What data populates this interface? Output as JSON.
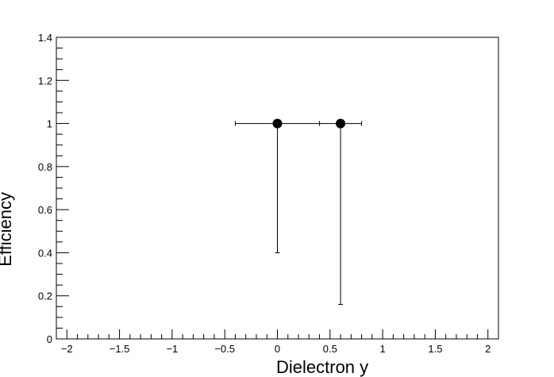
{
  "chart_data": {
    "type": "scatter",
    "xlabel": "Dielectron y",
    "ylabel": "Efficiency",
    "xlim": [
      -2.1,
      2.1
    ],
    "ylim": [
      0,
      1.4
    ],
    "x_ticks": [
      -2,
      -1.5,
      -1,
      -0.5,
      0,
      0.5,
      1,
      1.5,
      2
    ],
    "x_tick_labels": [
      "−2",
      "−1.5",
      "−1",
      "−0.5",
      "0",
      "0.5",
      "1",
      "1.5",
      "2"
    ],
    "y_ticks": [
      0,
      0.2,
      0.4,
      0.6,
      0.8,
      1,
      1.2,
      1.4
    ],
    "y_tick_labels": [
      "0",
      "0.2",
      "0.4",
      "0.6",
      "0.8",
      "1",
      "1.2",
      "1.4"
    ],
    "grid": false,
    "points": [
      {
        "x": 0.0,
        "y": 1.0,
        "x_low": -0.4,
        "x_high": 0.4,
        "y_low": 0.4,
        "y_high": 1.0
      },
      {
        "x": 0.6,
        "y": 1.0,
        "x_low": 0.4,
        "x_high": 0.8,
        "y_low": 0.16,
        "y_high": 1.0
      }
    ],
    "marker_color": "#000000"
  }
}
